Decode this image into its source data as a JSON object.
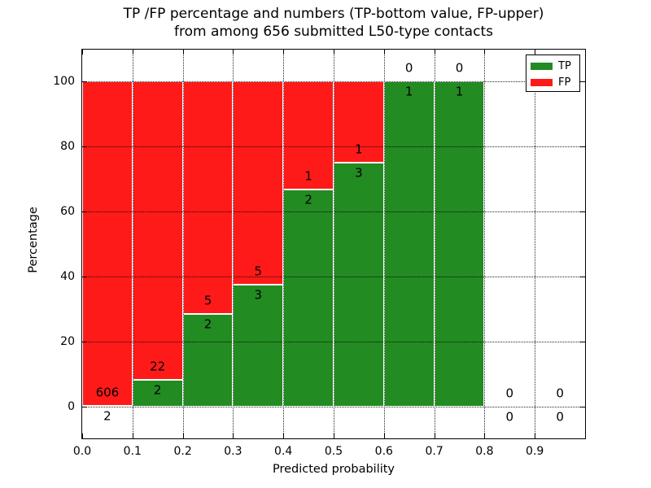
{
  "title": {
    "line1": "TP /FP percentage and numbers (TP-bottom value, FP-upper)",
    "line2": "from among 656 submitted L50-type contacts"
  },
  "chart_data": {
    "type": "bar",
    "stacked": true,
    "title": "TP /FP percentage and numbers (TP-bottom value, FP-upper)\nfrom among 656 submitted L50-type contacts",
    "xlabel": "Predicted probability",
    "ylabel": "Percentage",
    "xlim": [
      0.0,
      1.0
    ],
    "ylim": [
      -10,
      110
    ],
    "bin_width": 0.1,
    "grid": "dotted, on top of bars",
    "total_contacts": 656,
    "xticks": [
      "0.0",
      "0.1",
      "0.2",
      "0.3",
      "0.4",
      "0.5",
      "0.6",
      "0.7",
      "0.8",
      "0.9"
    ],
    "ytick_values": [
      0,
      20,
      40,
      60,
      80,
      100
    ],
    "legend": {
      "position": "upper right",
      "entries": [
        {
          "label": "TP",
          "color": "#228B22"
        },
        {
          "label": "FP",
          "color": "#FF1A1A"
        }
      ]
    },
    "bins": [
      {
        "x_start": 0.0,
        "x_end": 0.1,
        "tp_count": 2,
        "fp_count": 606,
        "tp_pct": 0.33,
        "fp_pct": 99.67
      },
      {
        "x_start": 0.1,
        "x_end": 0.2,
        "tp_count": 2,
        "fp_count": 22,
        "tp_pct": 8.33,
        "fp_pct": 91.67
      },
      {
        "x_start": 0.2,
        "x_end": 0.3,
        "tp_count": 2,
        "fp_count": 5,
        "tp_pct": 28.57,
        "fp_pct": 71.43
      },
      {
        "x_start": 0.3,
        "x_end": 0.4,
        "tp_count": 3,
        "fp_count": 5,
        "tp_pct": 37.5,
        "fp_pct": 62.5
      },
      {
        "x_start": 0.4,
        "x_end": 0.5,
        "tp_count": 2,
        "fp_count": 1,
        "tp_pct": 66.67,
        "fp_pct": 33.33
      },
      {
        "x_start": 0.5,
        "x_end": 0.6,
        "tp_count": 3,
        "fp_count": 1,
        "tp_pct": 75.0,
        "fp_pct": 25.0
      },
      {
        "x_start": 0.6,
        "x_end": 0.7,
        "tp_count": 1,
        "fp_count": 0,
        "tp_pct": 100.0,
        "fp_pct": 0.0
      },
      {
        "x_start": 0.7,
        "x_end": 0.8,
        "tp_count": 1,
        "fp_count": 0,
        "tp_pct": 100.0,
        "fp_pct": 0.0
      },
      {
        "x_start": 0.8,
        "x_end": 0.9,
        "tp_count": 0,
        "fp_count": 0,
        "tp_pct": 0.0,
        "fp_pct": 0.0
      },
      {
        "x_start": 0.9,
        "x_end": 1.0,
        "tp_count": 0,
        "fp_count": 0,
        "tp_pct": 0.0,
        "fp_pct": 0.0
      }
    ],
    "colors": {
      "tp": "#228B22",
      "fp": "#FF1A1A",
      "bar_edge": "#FFFFFF",
      "grid": "#000000",
      "axis": "#000000",
      "background": "#FFFFFF"
    }
  }
}
